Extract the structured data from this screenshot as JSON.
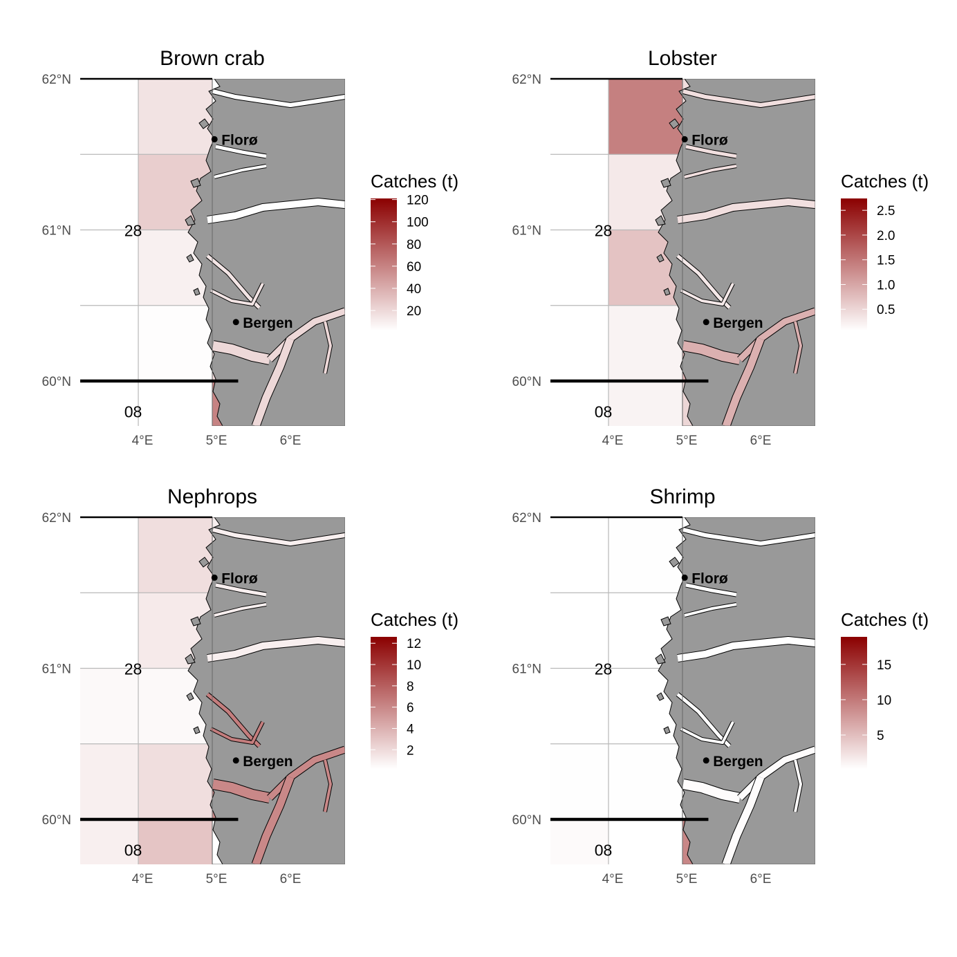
{
  "legend_title": "Catches (t)",
  "color_low": "#ffffff",
  "color_high": "#8b0000",
  "land_color": "#999999",
  "axis": {
    "x_ticks": [
      {
        "lon": 4,
        "label": "4°E"
      },
      {
        "lon": 5,
        "label": "5°E"
      },
      {
        "lon": 6,
        "label": "6°E"
      }
    ],
    "y_ticks": [
      {
        "lat": 62,
        "label": "62°N"
      },
      {
        "lat": 61,
        "label": "61°N"
      },
      {
        "lat": 60,
        "label": "60°N"
      }
    ]
  },
  "area_labels": [
    {
      "lon": 3.93,
      "lat": 61.0,
      "label": "28"
    },
    {
      "lon": 3.93,
      "lat": 59.8,
      "label": "08"
    }
  ],
  "cities": [
    {
      "name": "Florø",
      "lon": 5.03,
      "lat": 61.6
    },
    {
      "name": "Bergen",
      "lon": 5.32,
      "lat": 60.39
    }
  ],
  "chart_data": [
    {
      "type": "heatmap",
      "title": "Brown crab",
      "legend_range": [
        2,
        121
      ],
      "legend_ticks": [
        20,
        40,
        60,
        80,
        100,
        120
      ],
      "cells": [
        {
          "lon": 4,
          "lat": 61.5,
          "value": 15
        },
        {
          "lon": 4,
          "lat": 61.0,
          "value": 25
        },
        {
          "lon": 4,
          "lat": 60.5,
          "value": 9
        },
        {
          "lon": 4,
          "lat": 60.0,
          "value": 3
        },
        {
          "lon": 5,
          "lat": 59.5,
          "value": 60
        }
      ],
      "coastal": {
        "north": 2,
        "mid": 14,
        "south": 20
      }
    },
    {
      "type": "heatmap",
      "title": "Lobster",
      "legend_range": [
        0.07,
        2.74
      ],
      "legend_ticks": [
        0.5,
        1.0,
        1.5,
        2.0,
        2.5
      ],
      "tick_labels": [
        "0.5",
        "1.0",
        "1.5",
        "2.0",
        "2.5"
      ],
      "cells": [
        {
          "lon": 4,
          "lat": 61.5,
          "value": 1.4
        },
        {
          "lon": 4,
          "lat": 61.0,
          "value": 0.3
        },
        {
          "lon": 4,
          "lat": 60.5,
          "value": 0.7
        },
        {
          "lon": 4,
          "lat": 60.0,
          "value": 0.2
        },
        {
          "lon": 4,
          "lat": 59.5,
          "value": 0.2
        },
        {
          "lon": 5,
          "lat": 59.5,
          "value": 0.5
        }
      ],
      "coastal": {
        "north": 0.4,
        "mid": 0.3,
        "south": 0.9
      }
    },
    {
      "type": "heatmap",
      "title": "Nephrops",
      "legend_range": [
        0.2,
        12.6
      ],
      "legend_ticks": [
        2,
        4,
        6,
        8,
        10,
        12
      ],
      "cells": [
        {
          "lon": 4,
          "lat": 61.5,
          "value": 1.8
        },
        {
          "lon": 4,
          "lat": 61.0,
          "value": 1.2
        },
        {
          "lon": 3,
          "lat": 60.5,
          "value": 0.5
        },
        {
          "lon": 4,
          "lat": 60.5,
          "value": 0.5
        },
        {
          "lon": 3,
          "lat": 60.0,
          "value": 1.0
        },
        {
          "lon": 4,
          "lat": 60.0,
          "value": 1.8
        },
        {
          "lon": 3,
          "lat": 59.5,
          "value": 1.0
        },
        {
          "lon": 4,
          "lat": 59.5,
          "value": 3.0
        }
      ],
      "coastal": {
        "north": 1.0,
        "mid": 6.5,
        "south": 6.0
      }
    },
    {
      "type": "heatmap",
      "title": "Shrimp",
      "legend_range": [
        0.2,
        18.9
      ],
      "legend_ticks": [
        5,
        10,
        15
      ],
      "cells": [
        {
          "lon": 4,
          "lat": 61.5,
          "value": 0.3
        },
        {
          "lon": 4,
          "lat": 61.0,
          "value": 0.2
        },
        {
          "lon": 4,
          "lat": 60.5,
          "value": 0.2
        },
        {
          "lon": 3,
          "lat": 60.0,
          "value": 0.3
        },
        {
          "lon": 4,
          "lat": 60.0,
          "value": 0.3
        },
        {
          "lon": 3,
          "lat": 59.5,
          "value": 0.6
        },
        {
          "lon": 5,
          "lat": 59.5,
          "value": 9
        }
      ],
      "coastal": {
        "north": 0.2,
        "mid": 0.2,
        "south": 0.4
      }
    }
  ]
}
